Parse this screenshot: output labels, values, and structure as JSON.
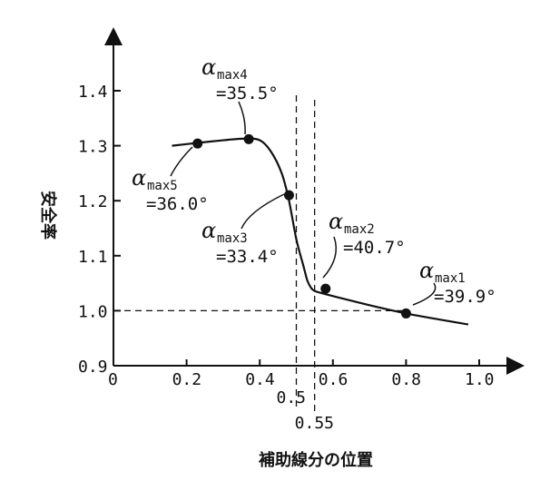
{
  "chart_data": {
    "type": "line",
    "xlabel": "補助線分の位置",
    "ylabel": "安全率",
    "xlim": [
      0,
      1.1
    ],
    "ylim": [
      0.9,
      1.5
    ],
    "x_ticks": [
      {
        "value": 0,
        "label": "0"
      },
      {
        "value": 0.2,
        "label": "0.2"
      },
      {
        "value": 0.4,
        "label": "0.4"
      },
      {
        "value": 0.6,
        "label": "0.6"
      },
      {
        "value": 0.8,
        "label": "0.8"
      },
      {
        "value": 1.0,
        "label": "1.0"
      }
    ],
    "y_ticks": [
      {
        "value": 0.9,
        "label": "0.9"
      },
      {
        "value": 1.0,
        "label": "1.0"
      },
      {
        "value": 1.1,
        "label": "1.1"
      },
      {
        "value": 1.2,
        "label": "1.2"
      },
      {
        "value": 1.3,
        "label": "1.3"
      },
      {
        "value": 1.4,
        "label": "1.4"
      }
    ],
    "extra_x_marks": [
      {
        "value": 0.5,
        "label": "0.5"
      },
      {
        "value": 0.55,
        "label": "0.55"
      }
    ],
    "reference_y": 1.0,
    "curve": {
      "x": [
        0.16,
        0.2,
        0.3,
        0.36,
        0.4,
        0.43,
        0.46,
        0.48,
        0.5,
        0.52,
        0.53,
        0.54,
        0.55,
        0.58,
        0.7,
        0.8,
        0.9,
        0.97
      ],
      "y": [
        1.3,
        1.303,
        1.31,
        1.313,
        1.31,
        1.29,
        1.25,
        1.2,
        1.13,
        1.08,
        1.055,
        1.042,
        1.036,
        1.03,
        1.01,
        0.995,
        0.983,
        0.975
      ]
    },
    "points": [
      {
        "x": 0.8,
        "y": 0.995,
        "alpha": "α",
        "sub": "max1",
        "value": "=39.9°"
      },
      {
        "x": 0.58,
        "y": 1.04,
        "alpha": "α",
        "sub": "max2",
        "value": "=40.7°"
      },
      {
        "x": 0.48,
        "y": 1.21,
        "alpha": "α",
        "sub": "max3",
        "value": "=33.4°"
      },
      {
        "x": 0.37,
        "y": 1.312,
        "alpha": "α",
        "sub": "max4",
        "value": "=35.5°"
      },
      {
        "x": 0.23,
        "y": 1.304,
        "alpha": "α",
        "sub": "max5",
        "value": "=36.0°"
      }
    ]
  }
}
